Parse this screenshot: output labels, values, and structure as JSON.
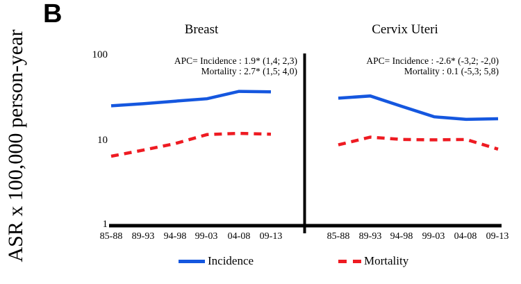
{
  "panel_label": "B",
  "y_axis_title": "ASR x 100,000 person-year",
  "colors": {
    "incidence": "#1557df",
    "mortality": "#ee1b22",
    "axis": "#000000"
  },
  "y_ticks": [
    "100",
    "10",
    "1"
  ],
  "legend": {
    "incidence_label": "Incidence",
    "mortality_label": "Mortality"
  },
  "chart_data": [
    {
      "type": "line",
      "title": "Breast",
      "y_scale": "log",
      "ylim": [
        1,
        100
      ],
      "grid": false,
      "categories": [
        "85-88",
        "89-93",
        "94-98",
        "99-03",
        "04-08",
        "09-13"
      ],
      "series": [
        {
          "name": "Incidence",
          "style": "solid",
          "color": "#1557df",
          "values": [
            26,
            27.5,
            29.5,
            31.5,
            38.5,
            38
          ]
        },
        {
          "name": "Mortality",
          "style": "dashed",
          "color": "#ee1b22",
          "values": [
            6.6,
            7.8,
            9.3,
            11.9,
            12.3,
            12.0
          ]
        }
      ],
      "annotation": {
        "line1": "APC= Incidence : 1.9* (1,4; 2,3)",
        "line2": "Mortality : 2.7* (1,5; 4,0)"
      }
    },
    {
      "type": "line",
      "title": "Cervix Uteri",
      "y_scale": "log",
      "ylim": [
        1,
        100
      ],
      "grid": false,
      "categories": [
        "85-88",
        "89-93",
        "94-98",
        "99-03",
        "04-08",
        "09-13"
      ],
      "series": [
        {
          "name": "Incidence",
          "style": "solid",
          "color": "#1557df",
          "values": [
            32,
            34,
            25.5,
            19.3,
            18,
            18.3
          ]
        },
        {
          "name": "Mortality",
          "style": "dashed",
          "color": "#ee1b22",
          "values": [
            9.0,
            11.1,
            10.4,
            10.3,
            10.4,
            8.0
          ]
        }
      ],
      "annotation": {
        "line1": "APC= Incidence : -2.6* (-3,2; -2,0)",
        "line2": "Mortality : 0.1 (-5,3; 5,8)"
      }
    }
  ]
}
